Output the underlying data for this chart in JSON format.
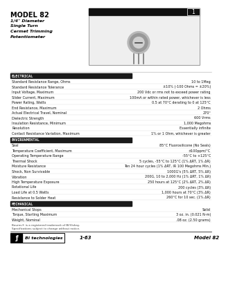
{
  "title": "MODEL 82",
  "subtitle_lines": [
    "1/4\" Diameter",
    "Single Turn",
    "Cermet Trimming",
    "Potentiometer"
  ],
  "page_num": "1",
  "bg_color": "#ffffff",
  "section_electrical": "ELECTRICAL",
  "electrical_rows": [
    [
      "Standard Resistance Range, Ohms",
      "10 to 1Meg"
    ],
    [
      "Standard Resistance Tolerance",
      "±10% (-100 Ohms = ±20%)"
    ],
    [
      "Input Voltage, Maximum",
      "200 Vdc or rms not to exceed power rating"
    ],
    [
      "Slider Current, Maximum",
      "100mA or within rated power, whichever is less"
    ],
    [
      "Power Rating, Watts",
      "0.5 at 70°C derating to 0 at 125°C"
    ],
    [
      "End Resistance, Maximum",
      "2 Ohms"
    ],
    [
      "Actual Electrical Travel, Nominal",
      "270°"
    ],
    [
      "Dielectric Strength",
      "600 Vrms"
    ],
    [
      "Insulation Resistance, Minimum",
      "1,000 Megohms"
    ],
    [
      "Resolution",
      "Essentially infinite"
    ],
    [
      "Contact Resistance Variation, Maximum",
      "1% or 1 Ohm, whichever is greater"
    ]
  ],
  "section_environmental": "ENVIRONMENTAL",
  "environmental_rows": [
    [
      "Seal",
      "85°C Fluorosilicone (No Seals)"
    ],
    [
      "Temperature Coefficient, Maximum",
      "±100ppm/°C"
    ],
    [
      "Operating Temperature Range",
      "-55°C to +125°C"
    ],
    [
      "Thermal Shock",
      "5 cycles, -55°C to 125°C (1% ΔRT, 1% ΔR)"
    ],
    [
      "Moisture Resistance",
      "Ten 24 hour cycles (1% ΔRT, IR 100 Megohms Min.)"
    ],
    [
      "Shock, Non Survivable",
      "1000G's (5% ΔRT, 5% ΔR)"
    ],
    [
      "Vibration",
      "200G, 10 to 2,000 Hz (1% ΔRT, 1% ΔR)"
    ],
    [
      "High Temperature Exposure",
      "250 hours at 125°C (2% ΔRT, 2% ΔR)"
    ],
    [
      "Rotational Life",
      "200 cycles (3% ΔR)"
    ],
    [
      "Load Life at 0.5 Watts",
      "1,000 hours at 70°C (3% ΔR)"
    ],
    [
      "Resistance to Solder Heat",
      "260°C for 10 sec. (1% ΔR)"
    ]
  ],
  "section_mechanical": "MECHANICAL",
  "mechanical_rows": [
    [
      "Mechanical Stops",
      "Solid"
    ],
    [
      "Torque, Starting Maximum",
      "3 oz. in. (0.021 N-m)"
    ],
    [
      "Weight, Nominal",
      ".08 oz. (2.50 grams)"
    ]
  ],
  "footnote1": "Bourns® is a registered trademark of BI/Vishay.",
  "footnote2": "Specifications subject to change without notice.",
  "footer_left": "1-63",
  "footer_right": "Model 82",
  "section_bar_color": "#1a1a1a",
  "section_text_color": "#ffffff",
  "row_text_color": "#111111"
}
